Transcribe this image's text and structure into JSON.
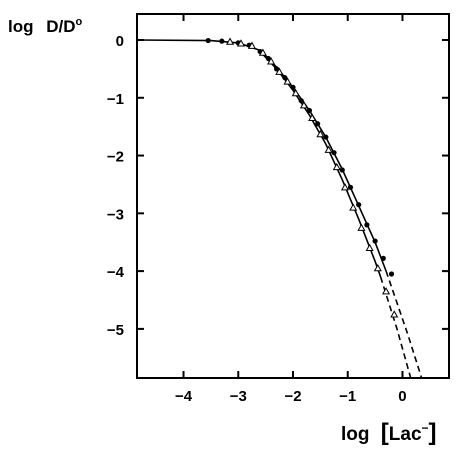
{
  "chart_data": {
    "type": "scatter",
    "title": "",
    "ylabel": {
      "prefix": "log",
      "main": "D/D",
      "sup": "o"
    },
    "xlabel": {
      "prefix": "log",
      "main": "Lac",
      "sup": "−"
    },
    "xlim": [
      -4.85,
      0.85
    ],
    "ylim": [
      -5.85,
      0.45
    ],
    "xticks": [
      -4,
      -3,
      -2,
      -1,
      0
    ],
    "yticks": [
      0,
      -1,
      -2,
      -3,
      -4,
      -5
    ],
    "xtick_labels": [
      "−4",
      "−3",
      "−2",
      "−1",
      "0"
    ],
    "ytick_labels": [
      "0",
      "−1",
      "−2",
      "−3",
      "−4",
      "−5"
    ],
    "grid": false,
    "series": [
      {
        "marker": "filled-circle",
        "points": [
          [
            -3.55,
            -0.01
          ],
          [
            -3.3,
            -0.02
          ],
          [
            -3.0,
            -0.05
          ],
          [
            -2.8,
            -0.09
          ],
          [
            -2.6,
            -0.2
          ],
          [
            -2.45,
            -0.32
          ],
          [
            -2.3,
            -0.5
          ],
          [
            -2.15,
            -0.65
          ],
          [
            -2.0,
            -0.82
          ],
          [
            -1.85,
            -1.05
          ],
          [
            -1.7,
            -1.22
          ],
          [
            -1.55,
            -1.45
          ],
          [
            -1.4,
            -1.68
          ],
          [
            -1.25,
            -1.95
          ],
          [
            -1.1,
            -2.25
          ],
          [
            -0.95,
            -2.55
          ],
          [
            -0.8,
            -2.85
          ],
          [
            -0.65,
            -3.2
          ],
          [
            -0.5,
            -3.48
          ],
          [
            -0.35,
            -3.78
          ],
          [
            -0.2,
            -4.05
          ]
        ],
        "fit_solid": [
          [
            -4.85,
            0.0
          ],
          [
            -3.5,
            -0.01
          ],
          [
            -3.0,
            -0.05
          ],
          [
            -2.6,
            -0.18
          ],
          [
            -2.3,
            -0.47
          ],
          [
            -2.0,
            -0.82
          ],
          [
            -1.7,
            -1.22
          ],
          [
            -1.4,
            -1.68
          ],
          [
            -1.1,
            -2.24
          ],
          [
            -0.8,
            -2.87
          ],
          [
            -0.5,
            -3.5
          ],
          [
            -0.3,
            -4.0
          ]
        ],
        "fit_dashed": [
          [
            -0.3,
            -4.0
          ],
          [
            0.1,
            -5.1
          ],
          [
            0.35,
            -5.85
          ]
        ]
      },
      {
        "marker": "open-triangle",
        "points": [
          [
            -3.15,
            -0.03
          ],
          [
            -2.95,
            -0.06
          ],
          [
            -2.75,
            -0.1
          ],
          [
            -2.55,
            -0.22
          ],
          [
            -2.4,
            -0.37
          ],
          [
            -2.25,
            -0.55
          ],
          [
            -2.1,
            -0.72
          ],
          [
            -1.95,
            -0.92
          ],
          [
            -1.8,
            -1.13
          ],
          [
            -1.65,
            -1.35
          ],
          [
            -1.5,
            -1.63
          ],
          [
            -1.35,
            -1.9
          ],
          [
            -1.2,
            -2.2
          ],
          [
            -1.05,
            -2.55
          ],
          [
            -0.9,
            -2.9
          ],
          [
            -0.75,
            -3.25
          ],
          [
            -0.6,
            -3.6
          ],
          [
            -0.45,
            -3.95
          ],
          [
            -0.3,
            -4.35
          ],
          [
            -0.15,
            -4.75
          ]
        ],
        "fit_solid": [
          [
            -2.6,
            -0.2
          ],
          [
            -2.3,
            -0.5
          ],
          [
            -2.0,
            -0.87
          ],
          [
            -1.7,
            -1.3
          ],
          [
            -1.4,
            -1.8
          ],
          [
            -1.1,
            -2.42
          ],
          [
            -0.8,
            -3.1
          ],
          [
            -0.5,
            -3.83
          ],
          [
            -0.4,
            -4.1
          ]
        ],
        "fit_dashed": [
          [
            -0.4,
            -4.1
          ],
          [
            -0.1,
            -5.0
          ],
          [
            0.15,
            -5.85
          ]
        ]
      }
    ]
  }
}
